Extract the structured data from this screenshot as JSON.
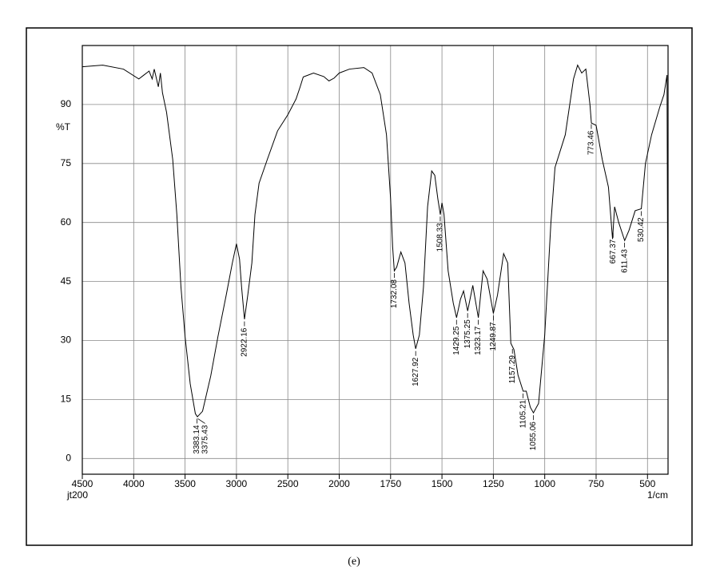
{
  "chart_data": {
    "type": "line",
    "y_label": "%T",
    "x_label": "1/cm",
    "sample_label": "jt200",
    "caption": "(e)",
    "x": [
      4500,
      4300,
      4100,
      3950,
      3900,
      3850,
      3820,
      3800,
      3760,
      3740,
      3720,
      3680,
      3620,
      3580,
      3540,
      3500,
      3450,
      3400,
      3380,
      3330,
      3250,
      3180,
      3100,
      3040,
      3000,
      2970,
      2950,
      2922,
      2890,
      2850,
      2820,
      2780,
      2700,
      2600,
      2500,
      2420,
      2380,
      2350,
      2250,
      2150,
      2100,
      2050,
      2000,
      1950,
      1880,
      1840,
      1800,
      1770,
      1750,
      1740,
      1732,
      1720,
      1700,
      1680,
      1660,
      1640,
      1628,
      1610,
      1590,
      1570,
      1550,
      1535,
      1520,
      1508,
      1500,
      1490,
      1470,
      1445,
      1429,
      1410,
      1395,
      1375,
      1350,
      1323,
      1300,
      1280,
      1250,
      1230,
      1200,
      1180,
      1165,
      1150,
      1130,
      1105,
      1090,
      1070,
      1055,
      1030,
      1000,
      970,
      950,
      900,
      860,
      840,
      820,
      800,
      780,
      773,
      750,
      720,
      690,
      670,
      660,
      640,
      611,
      590,
      560,
      530,
      510,
      480,
      440,
      420,
      405,
      400
    ],
    "values": [
      99.6,
      100,
      99,
      96.5,
      97.5,
      98.5,
      96.5,
      99,
      94.5,
      98,
      93,
      88,
      76,
      62,
      43.6,
      31,
      19,
      11.4,
      10.6,
      12,
      21,
      31,
      41.5,
      49.7,
      54.6,
      50.7,
      43.6,
      35.4,
      41.5,
      49.7,
      62,
      70,
      76,
      83.3,
      87.4,
      91.4,
      94.5,
      97,
      98,
      97.1,
      96,
      96.7,
      98,
      99,
      99.4,
      98,
      92.5,
      82.3,
      66,
      53.8,
      47.7,
      48.7,
      52.5,
      49.7,
      39.5,
      31.4,
      27.9,
      31.4,
      43.6,
      64,
      73.1,
      72,
      66,
      62,
      65,
      62,
      47.7,
      39.5,
      35.8,
      40.5,
      42.6,
      37.5,
      44,
      35.8,
      47.7,
      45.6,
      36.9,
      41.5,
      52.1,
      49.7,
      29.3,
      27.7,
      21.2,
      17.1,
      17.1,
      13,
      11.6,
      14,
      31.4,
      59.9,
      74,
      82.3,
      96.5,
      100,
      98,
      99,
      90,
      85.3,
      84.7,
      76,
      69,
      55.8,
      64,
      60,
      55.4,
      58,
      63,
      63.5,
      75,
      82.3,
      89.4,
      92.5,
      97.5,
      19
    ],
    "color": "#000000",
    "peaks": [
      3383.14,
      3375.43,
      2922.16,
      1732.08,
      1627.92,
      1508.33,
      1429.25,
      1375.25,
      1323.17,
      1249.87,
      1157.29,
      1105.21,
      1055.06,
      773.46,
      667.37,
      611.43,
      530.42
    ],
    "xlim": [
      4500,
      400
    ],
    "ylim": [
      -4,
      105
    ],
    "xticks": [
      4500,
      4000,
      3500,
      3000,
      2500,
      2000,
      1750,
      1500,
      1250,
      1000,
      750,
      500
    ],
    "yticks": [
      0,
      15,
      30,
      45,
      60,
      75,
      90
    ],
    "grid": true
  }
}
